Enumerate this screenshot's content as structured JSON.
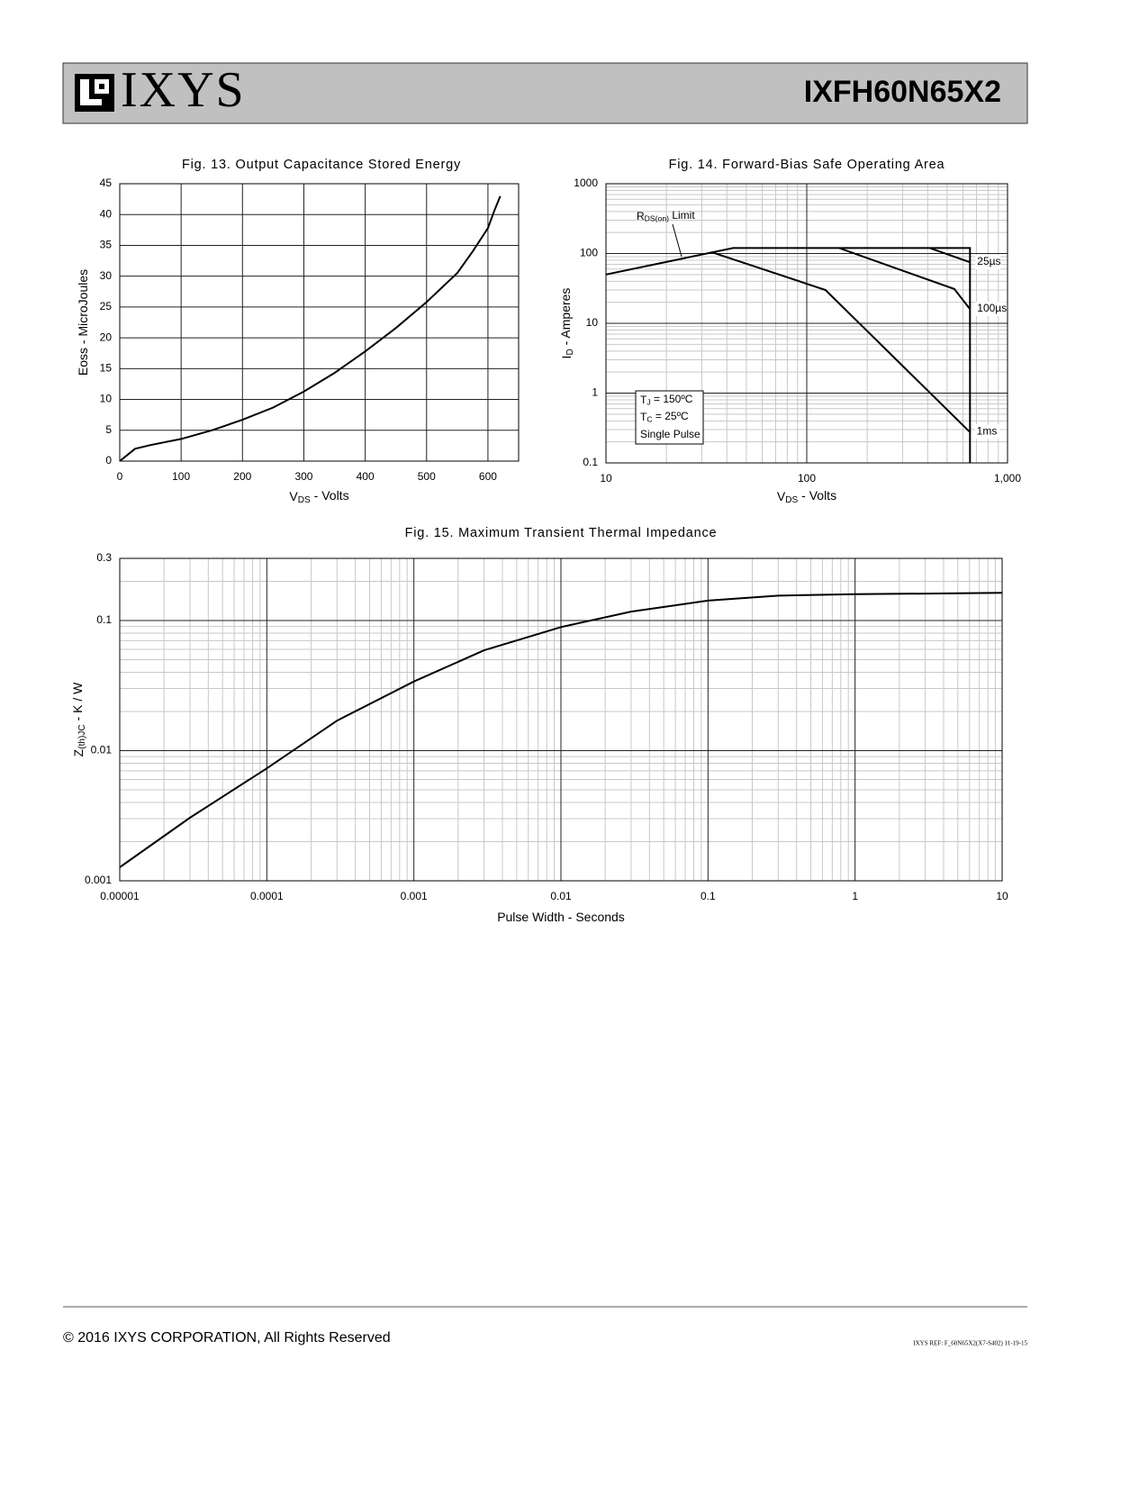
{
  "header": {
    "logo": "IXYS",
    "part": "IXFH60N65X2"
  },
  "chart_data": [
    {
      "type": "line",
      "title": "Fig. 13. Output Capacitance Stored Energy",
      "xlabel": {
        "main": "V",
        "sub": "DS",
        "rest": " - Volts"
      },
      "ylabel": {
        "main": "Eoss - MicroJoules"
      },
      "xlim": [
        0,
        650
      ],
      "xticks": [
        0,
        100,
        200,
        300,
        400,
        500,
        600
      ],
      "ylim": [
        0,
        45
      ],
      "yticks": [
        0,
        5,
        10,
        15,
        20,
        25,
        30,
        35,
        40,
        45
      ],
      "grid": true,
      "color": "#000000",
      "series": [
        {
          "x": [
            0,
            25,
            50,
            100,
            150,
            200,
            250,
            300,
            350,
            400,
            450,
            500,
            550,
            575,
            600,
            610,
            620
          ],
          "values": [
            0,
            2,
            2.6,
            3.6,
            5,
            6.7,
            8.7,
            11.3,
            14.3,
            17.8,
            21.6,
            25.8,
            30.5,
            34,
            37.8,
            40.5,
            43
          ]
        }
      ]
    },
    {
      "type": "line",
      "title": "Fig. 14. Forward-Bias Safe Operating Area",
      "xlabel": {
        "main": "V",
        "sub": "DS",
        "rest": " - Volts"
      },
      "ylabel": {
        "main": "I",
        "sub": "D",
        "rest": " - Amperes"
      },
      "xlog": true,
      "ylog": true,
      "xlim": [
        10,
        1000
      ],
      "xticks": [
        10,
        100,
        {
          "value": 1000,
          "label": "1,000"
        }
      ],
      "ylim": [
        0.1,
        1000
      ],
      "yticks": [
        0.1,
        1,
        10,
        100,
        1000
      ],
      "grid": true,
      "color": "#000000",
      "series": [
        {
          "name": {
            "main": "R",
            "sub": "DS(on)",
            "rest": " Limit"
          },
          "x": [
            10,
            43,
            650,
            650
          ],
          "values": [
            50,
            120,
            120,
            0.1
          ]
        },
        {
          "name": {
            "main": "25µs"
          },
          "x": [
            410,
            650
          ],
          "values": [
            120,
            75
          ]
        },
        {
          "name": {
            "main": "100µs"
          },
          "x": [
            145,
            543,
            650
          ],
          "values": [
            120,
            31,
            16
          ]
        },
        {
          "name": {
            "main": "1ms"
          },
          "x": [
            33.5,
            124,
            646
          ],
          "values": [
            105,
            30,
            0.28
          ]
        }
      ],
      "annotation": [
        {
          "main": "T",
          "sub": "J",
          "rest": " = 150ºC"
        },
        {
          "main": "T",
          "sub": "C",
          "rest": " = 25ºC"
        },
        {
          "main": "Single Pulse"
        }
      ]
    },
    {
      "type": "line",
      "title": "Fig. 15. Maximum Transient Thermal Impedance",
      "xlabel": {
        "main": "Pulse Width - Seconds"
      },
      "ylabel": {
        "main": "Z",
        "sub": "(th)JC",
        "rest": " - K / W"
      },
      "xlog": true,
      "ylog": true,
      "xlim": [
        1e-05,
        10
      ],
      "xticks": [
        1e-05,
        0.0001,
        0.001,
        0.01,
        0.1,
        1,
        10
      ],
      "ylim": [
        0.001,
        0.3
      ],
      "yticks": [
        0.001,
        0.01,
        0.1,
        0.3
      ],
      "grid": true,
      "color": "#000000",
      "series": [
        {
          "x": [
            1e-05,
            3e-05,
            0.0001,
            0.0003,
            0.001,
            0.003,
            0.01,
            0.03,
            0.1,
            0.3,
            1,
            10
          ],
          "values": [
            0.00127,
            0.00305,
            0.0073,
            0.017,
            0.034,
            0.059,
            0.089,
            0.117,
            0.142,
            0.155,
            0.159,
            0.163
          ]
        }
      ]
    }
  ],
  "footer": {
    "copyright": "© 2016 IXYS CORPORATION, All Rights Reserved",
    "ref": "IXYS REF: F_60N65X2(X7-S402) 11-19-15"
  }
}
